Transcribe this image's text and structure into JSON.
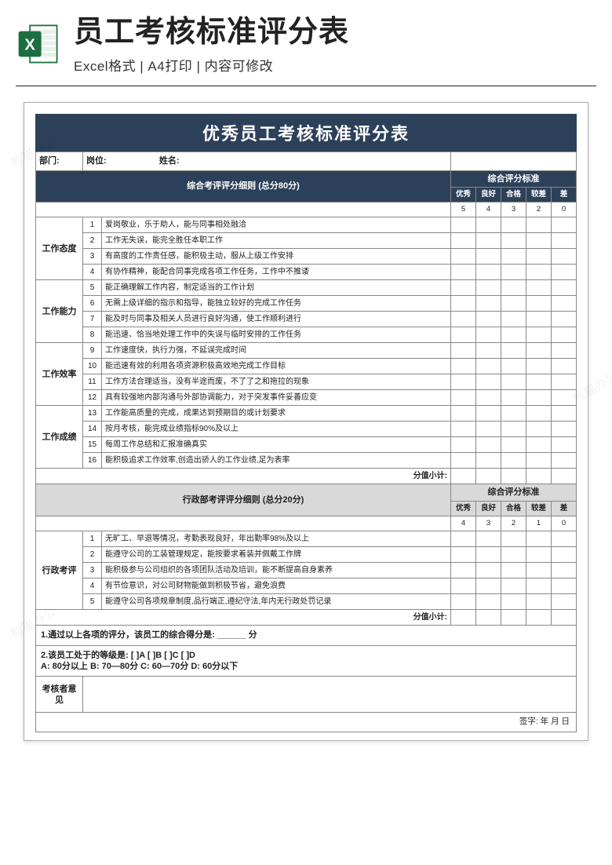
{
  "header": {
    "main_title": "员工考核标准评分表",
    "sub_title": "Excel格式 | A4打印 | 内容可修改"
  },
  "doc": {
    "title": "优秀员工考核标准评分表",
    "info": {
      "dept_label": "部门:",
      "post_label": "岗位:",
      "name_label": "姓名:"
    },
    "section1": {
      "title": "综合考评评分细则 (总分80分)",
      "std_title": "综合评分标准",
      "score_labels": [
        "优秀",
        "良好",
        "合格",
        "较差",
        "差"
      ],
      "score_values": [
        "5",
        "4",
        "3",
        "2",
        "0"
      ],
      "groups": [
        {
          "category": "工作态度",
          "items": [
            {
              "n": "1",
              "d": "爱岗敬业，乐于助人，能与同事相处融洽"
            },
            {
              "n": "2",
              "d": "工作无失误，能完全胜任本职工作"
            },
            {
              "n": "3",
              "d": "有高度的工作责任感，能积极主动，服从上级工作安排"
            },
            {
              "n": "4",
              "d": "有协作精神，能配合同事完成各项工作任务，工作中不推诿"
            }
          ]
        },
        {
          "category": "工作能力",
          "items": [
            {
              "n": "5",
              "d": "能正确理解工作内容，制定适当的工作计划"
            },
            {
              "n": "6",
              "d": "无需上级详细的指示和指导，能独立较好的完成工作任务"
            },
            {
              "n": "7",
              "d": "能及时与同事及相关人员进行良好沟通，使工作顺利进行"
            },
            {
              "n": "8",
              "d": "能迅速、恰当地处理工作中的失误与临时安排的工作任务"
            }
          ]
        },
        {
          "category": "工作效率",
          "items": [
            {
              "n": "9",
              "d": "工作速度快，执行力强，不延误完成时间"
            },
            {
              "n": "10",
              "d": "能迅速有效的利用各项资源积极高效地完成工作目标"
            },
            {
              "n": "11",
              "d": "工作方法合理适当，没有半途而废，不了了之和拖拉的现象"
            },
            {
              "n": "12",
              "d": "具有较强地内部沟通与外部协调能力，对于突发事件妥善应变"
            }
          ]
        },
        {
          "category": "工作成绩",
          "items": [
            {
              "n": "13",
              "d": "工作能高质量的完成，成果达到预期目的或计划要求"
            },
            {
              "n": "14",
              "d": "按月考核，能完成业绩指标90%及以上"
            },
            {
              "n": "15",
              "d": "每周工作总结和汇报准确真实"
            },
            {
              "n": "16",
              "d": "能积极追求工作效率,创造出骄人的工作业绩,足为表率"
            }
          ]
        }
      ],
      "subtotal": "分值小计:"
    },
    "section2": {
      "title": "行政部考评评分细则 (总分20分)",
      "std_title": "综合评分标准",
      "score_labels": [
        "优秀",
        "良好",
        "合格",
        "较差",
        "差"
      ],
      "score_values": [
        "4",
        "3",
        "2",
        "1",
        "0"
      ],
      "category": "行政考评",
      "items": [
        {
          "n": "1",
          "d": "无旷工、早退等情况，考勤表现良好，年出勤率98%及以上"
        },
        {
          "n": "2",
          "d": "能遵守公司的工装管理规定，能按要求着装并佩戴工作牌"
        },
        {
          "n": "3",
          "d": "能积极参与公司组织的各项团队活动及培训，能不断提高自身素养"
        },
        {
          "n": "4",
          "d": "有节俭意识，对公司财物能做到积极节省，避免浪费"
        },
        {
          "n": "5",
          "d": "能遵守公司各项规章制度,品行端正,遵纪守法,年内无行政处罚记录"
        }
      ],
      "subtotal": "分值小计:"
    },
    "footer": {
      "line1": "1.通过以上各项的评分，该员工的综合得分是: ______ 分",
      "line2a": "2.该员工处于的等级是:  [  ]A    [  ]B    [  ]C    [  ]D",
      "line2b": "   A: 80分以上  B: 70—80分  C: 60—70分  D: 60分以下",
      "reviewer": "考核者意见",
      "sign": "签字:         年  月  日"
    }
  },
  "colors": {
    "header_bg": "#2d4059",
    "gray_bg": "#d9d9d9",
    "excel_green": "#1d6f42"
  }
}
